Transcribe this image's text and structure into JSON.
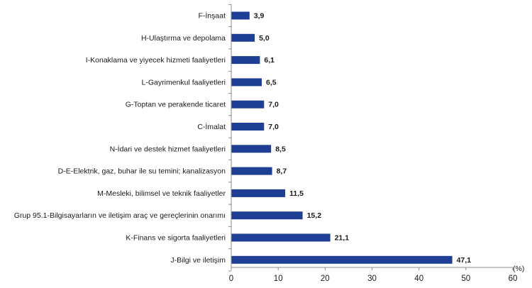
{
  "chart_data": {
    "type": "bar",
    "orientation": "horizontal",
    "categories": [
      "F-İnşaat",
      "H-Ulaştırma ve depolama",
      "I-Konaklama ve yiyecek hizmeti faaliyetleri",
      "L-Gayrimenkul faaliyetleri",
      "G-Toptan ve perakende ticaret",
      "C-İmalat",
      "N-İdari ve destek hizmet faaliyetleri",
      "D-E-Elektrik, gaz, buhar ile su temini; kanalizasyon",
      "M-Mesleki, bilimsel ve teknik faaliyetler",
      "Grup 95.1-Bilgisayarların ve iletişim araç ve gereçlerinin onarımı",
      "K-Finans ve sigorta faaliyetleri",
      "J-Bilgi ve iletişim"
    ],
    "values": [
      3.9,
      5.0,
      6.1,
      6.5,
      7.0,
      7.0,
      8.5,
      8.7,
      11.5,
      15.2,
      21.1,
      47.1
    ],
    "value_labels": [
      "3,9",
      "5,0",
      "6,1",
      "6,5",
      "7,0",
      "7,0",
      "8,5",
      "8,7",
      "11,5",
      "15,2",
      "21,1",
      "47,1"
    ],
    "xlim": [
      0,
      60
    ],
    "xticks": [
      0,
      10,
      20,
      30,
      40,
      50,
      60
    ],
    "xtick_labels": [
      "0",
      "10",
      "20",
      "30",
      "40",
      "50",
      "60"
    ],
    "unit_label": "(%)",
    "bar_color": "#1f3f94",
    "grid": false
  }
}
